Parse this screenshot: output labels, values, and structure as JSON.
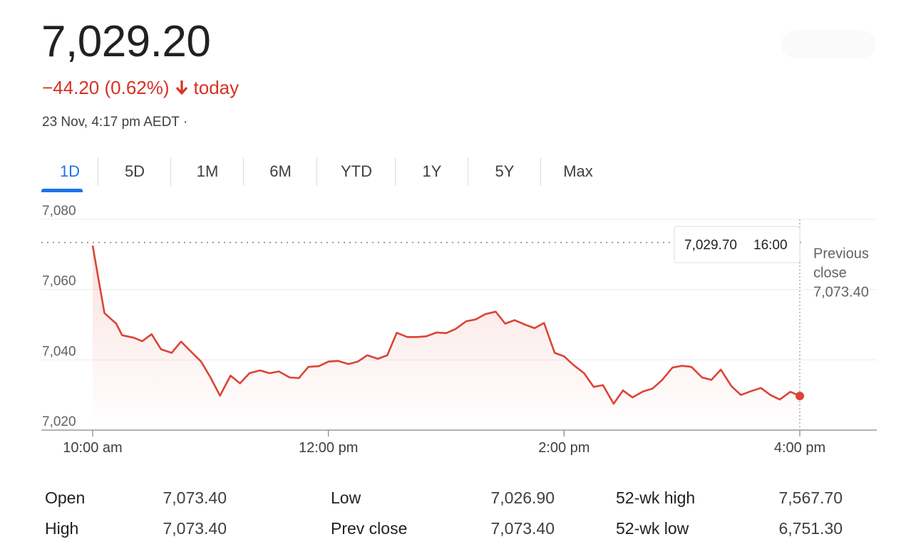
{
  "quote": {
    "price": "7,029.20",
    "change_text": "−44.20 (0.62%)",
    "change_suffix": "today",
    "direction": "down",
    "timestamp": "23 Nov, 4:17 pm AEDT ·",
    "down_color": "#d93025"
  },
  "tabs": [
    {
      "label": "1D",
      "active": true
    },
    {
      "label": "5D"
    },
    {
      "label": "1M"
    },
    {
      "label": "6M"
    },
    {
      "label": "YTD"
    },
    {
      "label": "1Y"
    },
    {
      "label": "5Y"
    },
    {
      "label": "Max"
    }
  ],
  "chart_data": {
    "type": "area",
    "line_color": "#db4437",
    "y_ticks": [
      7020,
      7040,
      7060,
      7080
    ],
    "y_tick_labels": [
      "7,020",
      "7,040",
      "7,060",
      "7,080"
    ],
    "ylim": [
      7020,
      7080
    ],
    "x_ticks": [
      10,
      12,
      14,
      16
    ],
    "x_tick_labels": [
      "10:00 am",
      "12:00 pm",
      "2:00 pm",
      "4:00 pm"
    ],
    "xlim_hours": [
      10,
      16
    ],
    "previous_close": 7073.4,
    "previous_close_label": [
      "Previous",
      "close",
      "7,073.40"
    ],
    "tooltip": {
      "value": "7,029.70",
      "time": "16:00"
    },
    "series": [
      {
        "x": [
          10.0,
          10.1,
          10.2,
          10.25,
          10.35,
          10.42,
          10.5,
          10.58,
          10.67,
          10.75,
          10.83,
          10.92,
          11.0,
          11.08,
          11.17,
          11.25,
          11.33,
          11.42,
          11.5,
          11.58,
          11.67,
          11.75,
          11.83,
          11.92,
          12.0,
          12.08,
          12.17,
          12.25,
          12.33,
          12.42,
          12.5,
          12.58,
          12.67,
          12.75,
          12.83,
          12.92,
          13.0,
          13.08,
          13.17,
          13.25,
          13.33,
          13.42,
          13.5,
          13.58,
          13.67,
          13.75,
          13.83,
          13.92,
          14.0,
          14.08,
          14.17,
          14.25,
          14.33,
          14.42,
          14.5,
          14.58,
          14.67,
          14.75,
          14.83,
          14.92,
          15.0,
          15.08,
          15.17,
          15.25,
          15.33,
          15.42,
          15.5,
          15.58,
          15.67,
          15.75,
          15.83,
          15.92,
          16.0
        ],
        "y": [
          7072.5,
          7053.3,
          7050.3,
          7047.0,
          7046.3,
          7045.3,
          7047.3,
          7043.0,
          7042.0,
          7045.2,
          7042.5,
          7039.5,
          7035.0,
          7029.8,
          7035.5,
          7033.3,
          7036.2,
          7037.0,
          7036.2,
          7036.7,
          7035.0,
          7034.8,
          7038.0,
          7038.2,
          7039.5,
          7039.7,
          7038.8,
          7039.5,
          7041.3,
          7040.3,
          7041.3,
          7047.7,
          7046.5,
          7046.5,
          7046.7,
          7047.8,
          7047.6,
          7048.8,
          7051.0,
          7051.5,
          7053.0,
          7053.7,
          7050.3,
          7051.3,
          7050.0,
          7049.0,
          7050.5,
          7042.0,
          7041.0,
          7038.5,
          7036.2,
          7032.3,
          7032.8,
          7027.5,
          7031.3,
          7029.3,
          7031.0,
          7031.8,
          7034.2,
          7037.8,
          7038.3,
          7038.0,
          7035.0,
          7034.3,
          7037.2,
          7032.5,
          7030.0,
          7031.0,
          7032.0,
          7030.0,
          7028.7,
          7030.9,
          7029.7
        ]
      }
    ]
  },
  "stats": [
    {
      "label": "Open",
      "value": "7,073.40"
    },
    {
      "label": "High",
      "value": "7,073.40"
    },
    {
      "label": "Low",
      "value": "7,026.90"
    },
    {
      "label": "Prev close",
      "value": "7,073.40"
    },
    {
      "label": "52-wk high",
      "value": "7,567.70"
    },
    {
      "label": "52-wk low",
      "value": "6,751.30"
    }
  ]
}
